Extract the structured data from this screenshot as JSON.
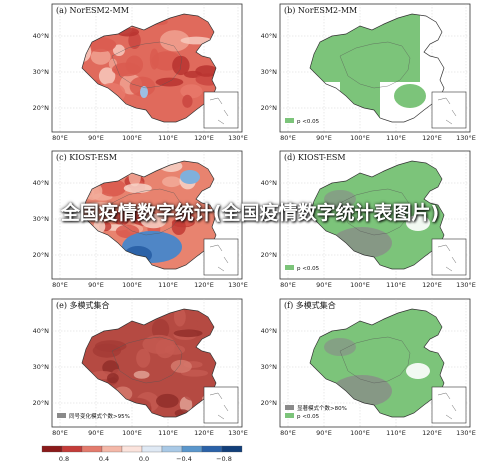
{
  "panels": [
    {
      "title": "(a) NorESM2-MM",
      "style": "red",
      "legend": ""
    },
    {
      "title": "(b) NorESM2-MM",
      "style": "green",
      "legend": "p <0.05"
    },
    {
      "title": "(c) KIOST-ESM",
      "style": "mixed",
      "legend": ""
    },
    {
      "title": "(d) KIOST-ESM",
      "style": "green-grey",
      "legend": "p <0.05"
    },
    {
      "title": "(e) 多模式集合",
      "style": "darkred",
      "legend": "同号变化模式个数>95%"
    },
    {
      "title": "(f) 多模式集合",
      "style": "green-grey",
      "legend": "p <0.05",
      "legend2": "显著模式个数>80%"
    }
  ],
  "axes": {
    "lat_ticks": [
      "40°N",
      "30°N",
      "20°N"
    ],
    "lon_ticks": [
      "80°E",
      "90°E",
      "100°E",
      "110°E",
      "120°E",
      "130°E"
    ]
  },
  "colorbar": {
    "labels": [
      "0.8",
      "0.4",
      "0.0",
      "−0.4",
      "−0.8"
    ],
    "colors": [
      "#8b1a1a",
      "#c43c39",
      "#e37b6d",
      "#f4b8a8",
      "#fbe3dc",
      "#dfe9f4",
      "#a9c9e6",
      "#5b97cc",
      "#2b62a8",
      "#123f7a"
    ]
  },
  "colors": {
    "sig_green": "#7cc47a",
    "nonsig_grey": "#8a8a8a",
    "red_mid": "#e06a5c",
    "dark_red": "#b54a42",
    "blue": "#4f86c6"
  },
  "watermark": "全国疫情数字统计(全国疫情数字统计表图片)"
}
